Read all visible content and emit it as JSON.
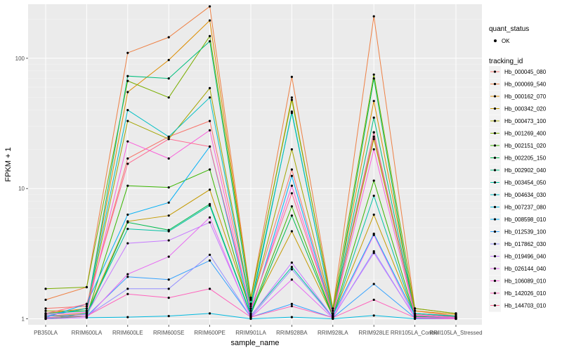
{
  "chart_data": {
    "type": "line",
    "xlabel": "sample_name",
    "ylabel": "FPKM + 1",
    "y_scale": "log10",
    "ylim": [
      0.9,
      260
    ],
    "y_ticks": [
      1,
      10,
      100
    ],
    "grid": true,
    "legend_placement": "right",
    "categories": [
      "PB350LA",
      "RRIM600LA",
      "RRIM600LE",
      "RRIM600SE",
      "RRIM600PE",
      "RRIM901LA",
      "RRIM928BA",
      "RRIM928LA",
      "RRIM928LE",
      "RRII105LA_Control",
      "RRII105LA_Stressed"
    ],
    "shape_legend": {
      "title": "quant_status",
      "items": [
        {
          "label": "OK"
        }
      ]
    },
    "color_legend_title": "tracking_id",
    "series": [
      {
        "name": "Hb_000045_080",
        "color": "#F8766D",
        "values": [
          1.2,
          1.25,
          17.0,
          25.0,
          33.0,
          1.3,
          14.0,
          1.1,
          25.0,
          1.15,
          1.05
        ]
      },
      {
        "name": "Hb_000069_540",
        "color": "#EE8044",
        "values": [
          1.4,
          1.75,
          110.0,
          145.0,
          250.0,
          1.45,
          72.0,
          1.2,
          210.0,
          1.2,
          1.1
        ]
      },
      {
        "name": "Hb_000162_070",
        "color": "#DD8D00",
        "values": [
          1.1,
          1.2,
          55.0,
          97.0,
          195.0,
          1.4,
          50.0,
          1.15,
          47.0,
          1.15,
          1.08
        ]
      },
      {
        "name": "Hb_000342_020",
        "color": "#C49A00",
        "values": [
          1.05,
          1.1,
          5.6,
          6.2,
          9.8,
          1.15,
          4.7,
          1.05,
          6.3,
          1.05,
          1.02
        ]
      },
      {
        "name": "Hb_000473_100",
        "color": "#A3A500",
        "values": [
          1.15,
          1.15,
          33.0,
          24.0,
          59.0,
          1.25,
          20.0,
          1.1,
          24.0,
          1.1,
          1.05
        ]
      },
      {
        "name": "Hb_001269_400",
        "color": "#7AAE00",
        "values": [
          1.7,
          1.75,
          67.0,
          50.0,
          148.0,
          1.45,
          48.0,
          1.2,
          75.0,
          1.2,
          1.1
        ]
      },
      {
        "name": "Hb_002151_020",
        "color": "#39B600",
        "values": [
          1.05,
          1.05,
          10.5,
          10.2,
          14.0,
          1.1,
          7.3,
          1.05,
          11.5,
          1.05,
          1.02
        ]
      },
      {
        "name": "Hb_002205_150",
        "color": "#00BB4E",
        "values": [
          1.0,
          1.05,
          5.5,
          4.8,
          7.6,
          1.08,
          6.2,
          1.04,
          70.0,
          1.04,
          1.01
        ]
      },
      {
        "name": "Hb_002902_040",
        "color": "#00BF7D",
        "values": [
          1.1,
          1.15,
          73.0,
          70.0,
          135.0,
          1.3,
          38.0,
          1.1,
          35.0,
          1.1,
          1.05
        ]
      },
      {
        "name": "Hb_003454_050",
        "color": "#00C1A3",
        "values": [
          1.0,
          1.1,
          4.9,
          4.7,
          7.4,
          1.06,
          2.5,
          1.03,
          8.8,
          1.03,
          1.01
        ]
      },
      {
        "name": "Hb_004634_030",
        "color": "#00BFC4",
        "values": [
          1.05,
          1.2,
          40.0,
          25.0,
          50.0,
          1.2,
          39.0,
          1.1,
          27.0,
          1.1,
          1.04
        ]
      },
      {
        "name": "Hb_007237_080",
        "color": "#00BAE0",
        "values": [
          1.0,
          1.02,
          1.03,
          1.05,
          1.1,
          1.0,
          1.03,
          1.0,
          1.06,
          1.0,
          1.0
        ]
      },
      {
        "name": "Hb_008598_010",
        "color": "#00B0F6",
        "values": [
          1.02,
          1.3,
          6.3,
          7.8,
          21.0,
          1.1,
          12.5,
          1.06,
          4.5,
          1.06,
          1.02
        ]
      },
      {
        "name": "Hb_012539_100",
        "color": "#35A2FF",
        "values": [
          1.02,
          1.05,
          2.1,
          2.0,
          2.8,
          1.03,
          1.3,
          1.02,
          1.85,
          1.02,
          1.0
        ]
      },
      {
        "name": "Hb_017862_030",
        "color": "#9590FF",
        "values": [
          1.02,
          1.05,
          1.7,
          1.7,
          3.1,
          1.03,
          2.4,
          1.02,
          3.3,
          1.02,
          1.0
        ]
      },
      {
        "name": "Hb_019496_040",
        "color": "#C77CFF",
        "values": [
          1.05,
          1.08,
          3.8,
          4.0,
          5.5,
          1.05,
          2.7,
          1.03,
          3.2,
          1.03,
          1.01
        ]
      },
      {
        "name": "Hb_026144_040",
        "color": "#E76BF3",
        "values": [
          1.0,
          1.02,
          2.2,
          3.0,
          6.0,
          1.02,
          2.0,
          1.01,
          4.4,
          1.01,
          1.0
        ]
      },
      {
        "name": "Hb_106089_010",
        "color": "#FA62DB",
        "values": [
          1.08,
          1.12,
          23.0,
          17.0,
          28.0,
          1.15,
          10.5,
          1.06,
          20.0,
          1.06,
          1.02
        ]
      },
      {
        "name": "Hb_142026_010",
        "color": "#FF62BC",
        "values": [
          1.02,
          1.05,
          1.55,
          1.45,
          1.7,
          1.03,
          1.25,
          1.02,
          1.4,
          1.02,
          1.0
        ]
      },
      {
        "name": "Hb_144703_010",
        "color": "#FF6C91",
        "values": [
          1.1,
          1.3,
          15.5,
          24.0,
          21.0,
          1.2,
          9.2,
          1.08,
          27.0,
          1.08,
          1.03
        ]
      }
    ]
  }
}
